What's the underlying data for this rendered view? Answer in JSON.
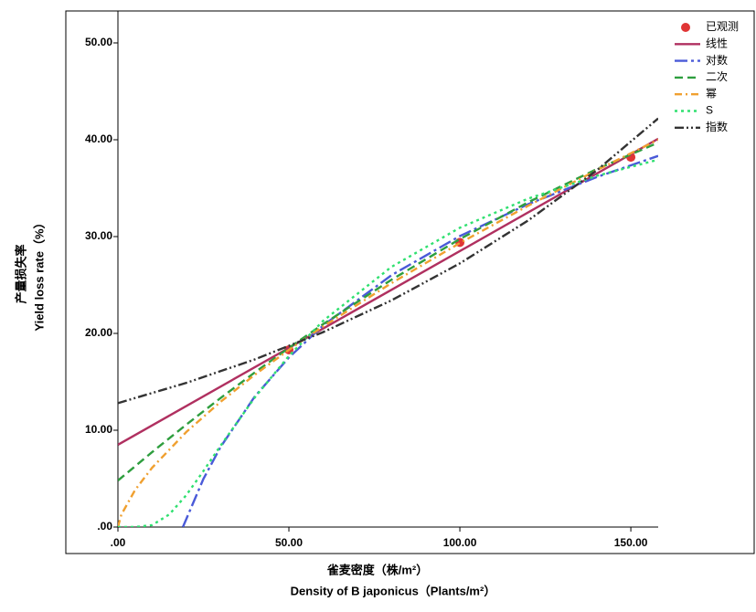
{
  "chart_data": {
    "type": "line",
    "x_label": "雀麦密度（株/m²）",
    "x_label_en": "Density of B japonicus（Plants/m²）",
    "y_label": "产量损失率",
    "y_label_en": "Yield loss rate（%）",
    "xlim": [
      0,
      158
    ],
    "ylim": [
      0,
      53.3
    ],
    "xticks": [
      {
        "value": 0,
        "label": ".00"
      },
      {
        "value": 50,
        "label": "50.00"
      },
      {
        "value": 100,
        "label": "100.00"
      },
      {
        "value": 150,
        "label": "150.00"
      }
    ],
    "yticks": [
      {
        "value": 0,
        "label": ".00"
      },
      {
        "value": 10,
        "label": "10.00"
      },
      {
        "value": 20,
        "label": "20.00"
      },
      {
        "value": 30,
        "label": "30.00"
      },
      {
        "value": 40,
        "label": "40.00"
      },
      {
        "value": 50,
        "label": "50.00"
      }
    ],
    "legend": "upper right",
    "series": [
      {
        "name": "已观测",
        "type": "scatter",
        "color": "#e03535",
        "x": [
          50,
          100,
          150
        ],
        "values": [
          18.3,
          29.4,
          38.2
        ]
      },
      {
        "name": "线性",
        "color": "#b03060",
        "x": [
          0,
          158
        ],
        "values": [
          8.5,
          40.1
        ]
      },
      {
        "name": "对数",
        "color": "#4a5ad8",
        "x": [
          19,
          25,
          30,
          40,
          50,
          60,
          80,
          100,
          120,
          140,
          158
        ],
        "values": [
          0.0,
          4.97,
          8.26,
          13.47,
          17.51,
          20.81,
          26.01,
          30.05,
          33.35,
          36.14,
          38.33
        ]
      },
      {
        "name": "二次",
        "color": "#2e9e3e",
        "x": [
          0,
          10,
          20,
          30,
          40,
          50,
          60,
          80,
          100,
          120,
          140,
          158
        ],
        "values": [
          4.8,
          7.74,
          10.58,
          13.32,
          15.96,
          18.5,
          20.95,
          25.54,
          29.74,
          33.55,
          36.96,
          39.7
        ]
      },
      {
        "name": "幂",
        "color": "#f0a030",
        "x": [
          0,
          1,
          5,
          10,
          20,
          30,
          40,
          50,
          60,
          80,
          100,
          120,
          140,
          158
        ],
        "values": [
          0,
          1.28,
          3.82,
          6.13,
          9.82,
          12.93,
          15.72,
          18.3,
          20.72,
          25.19,
          29.33,
          33.19,
          36.85,
          40.0
        ]
      },
      {
        "name": "S",
        "color": "#30e070",
        "x": [
          0,
          5,
          10,
          15,
          20,
          25,
          30,
          40,
          50,
          60,
          80,
          100,
          120,
          140,
          158
        ],
        "values": [
          0,
          0.0,
          0.2,
          1.3,
          3.3,
          5.78,
          8.39,
          13.37,
          17.67,
          21.29,
          26.87,
          30.91,
          33.92,
          36.27,
          37.94
        ]
      },
      {
        "name": "指数",
        "color": "#333333",
        "x": [
          0,
          20,
          40,
          60,
          80,
          100,
          120,
          140,
          158
        ],
        "values": [
          12.8,
          14.89,
          17.31,
          20.13,
          23.41,
          27.23,
          31.67,
          36.83,
          42.2
        ]
      }
    ]
  }
}
